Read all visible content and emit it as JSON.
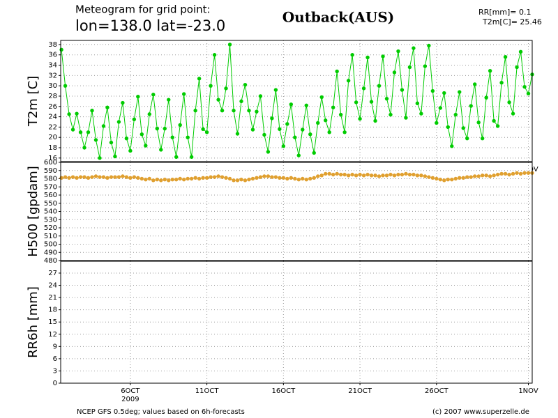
{
  "header": {
    "line1": "Meteogram for grid point:",
    "line2": "lon=138.0 lat=-23.0",
    "place": "Outback(AUS)",
    "rr": "RR[mm]= 0.1",
    "t2m": "T2m[C]= 25.46"
  },
  "footer": {
    "left": "NCEP GFS 0.5deg; values based on 6h-forecasts",
    "right": "(c) 2007 www.superzelle.de"
  },
  "chart_data": [
    {
      "type": "line",
      "ylabel": "T2m [C]",
      "xlim": [
        1.45,
        32.25
      ],
      "xticks": [
        {
          "value": 6,
          "label": "6OCT"
        },
        {
          "value": 11,
          "label": "11OCT"
        },
        {
          "value": 16,
          "label": "16OCT"
        },
        {
          "value": 21,
          "label": "21OCT"
        },
        {
          "value": 26,
          "label": "26OCT"
        },
        {
          "value": 32,
          "label": "1NOV"
        }
      ],
      "year_label": "2009",
      "ylim": [
        15.3,
        38.8
      ],
      "yticks": [
        16,
        18,
        20,
        22,
        24,
        26,
        28,
        30,
        32,
        34,
        36,
        38
      ],
      "grid": true,
      "x": [
        1.5,
        1.75,
        2,
        2.25,
        2.5,
        2.75,
        3,
        3.25,
        3.5,
        3.75,
        4,
        4.25,
        4.5,
        4.75,
        5,
        5.25,
        5.5,
        5.75,
        6,
        6.25,
        6.5,
        6.75,
        7,
        7.25,
        7.5,
        7.75,
        8,
        8.25,
        8.5,
        8.75,
        9,
        9.25,
        9.5,
        9.75,
        10,
        10.25,
        10.5,
        10.75,
        11,
        11.25,
        11.5,
        11.75,
        12,
        12.25,
        12.5,
        12.75,
        13,
        13.25,
        13.5,
        13.75,
        14,
        14.25,
        14.5,
        14.75,
        15,
        15.25,
        15.5,
        15.75,
        16,
        16.25,
        16.5,
        16.75,
        17,
        17.25,
        17.5,
        17.75,
        18,
        18.25,
        18.5,
        18.75,
        19,
        19.25,
        19.5,
        19.75,
        20,
        20.25,
        20.5,
        20.75,
        21,
        21.25,
        21.5,
        21.75,
        22,
        22.25,
        22.5,
        22.75,
        23,
        23.25,
        23.5,
        23.75,
        24,
        24.25,
        24.5,
        24.75,
        25,
        25.25,
        25.5,
        25.75,
        26,
        26.25,
        26.5,
        26.75,
        27,
        27.25,
        27.5,
        27.75,
        28,
        28.25,
        28.5,
        28.75,
        29,
        29.25,
        29.5,
        29.75,
        30,
        30.25,
        30.5,
        30.75,
        31,
        31.25,
        31.5,
        31.75,
        32,
        32.25
      ],
      "series": [
        {
          "color": "#00cc00",
          "values": [
            37,
            30,
            24.5,
            21.5,
            24.6,
            21,
            18,
            21,
            25.2,
            19.5,
            16,
            22.2,
            25.8,
            19,
            16.3,
            23,
            26.7,
            19.8,
            17.4,
            23.5,
            27.9,
            20.6,
            18.4,
            24.5,
            28.3,
            21.7,
            17.6,
            21.7,
            27.3,
            20,
            16.2,
            22.4,
            28.4,
            20,
            16.2,
            25.2,
            31.4,
            21.6,
            21,
            30,
            36,
            27.3,
            25.2,
            29.5,
            38,
            25.2,
            20.7,
            27,
            30.2,
            25.2,
            21.5,
            25,
            28,
            20.5,
            17.2,
            23.7,
            29.2,
            21.6,
            18.3,
            22.6,
            26.4,
            20,
            16.5,
            21.5,
            26.2,
            20.6,
            17,
            22.8,
            27.8,
            23.3,
            21,
            25.8,
            32.8,
            24.4,
            21,
            31,
            36,
            26.8,
            23.6,
            29.5,
            35.5,
            26.9,
            23.2,
            30,
            35.7,
            27.5,
            24.4,
            32.6,
            36.7,
            29.2,
            23.8,
            33.6,
            37.3,
            26.6,
            24.6,
            33.8,
            37.8,
            29,
            22.8,
            25.7,
            28.6,
            22,
            18.3,
            24.4,
            28.8,
            21.8,
            19.8,
            26.1,
            30.3,
            22.9,
            19.8,
            27.7,
            32.9,
            23.2,
            22.2,
            30.6,
            35.6,
            26.8,
            24.6,
            33.6,
            36.6,
            29.8,
            28.5,
            32.2
          ]
        }
      ]
    },
    {
      "type": "line",
      "ylabel": "H500 [gpdam]",
      "xlim": [
        1.45,
        32.25
      ],
      "ylim": [
        480,
        600
      ],
      "yticks": [
        480,
        490,
        500,
        510,
        520,
        530,
        540,
        550,
        560,
        570,
        580,
        590,
        600
      ],
      "grid": true,
      "x": [
        1.5,
        1.75,
        2,
        2.25,
        2.5,
        2.75,
        3,
        3.25,
        3.5,
        3.75,
        4,
        4.25,
        4.5,
        4.75,
        5,
        5.25,
        5.5,
        5.75,
        6,
        6.25,
        6.5,
        6.75,
        7,
        7.25,
        7.5,
        7.75,
        8,
        8.25,
        8.5,
        8.75,
        9,
        9.25,
        9.5,
        9.75,
        10,
        10.25,
        10.5,
        10.75,
        11,
        11.25,
        11.5,
        11.75,
        12,
        12.25,
        12.5,
        12.75,
        13,
        13.25,
        13.5,
        13.75,
        14,
        14.25,
        14.5,
        14.75,
        15,
        15.25,
        15.5,
        15.75,
        16,
        16.25,
        16.5,
        16.75,
        17,
        17.25,
        17.5,
        17.75,
        18,
        18.25,
        18.5,
        18.75,
        19,
        19.25,
        19.5,
        19.75,
        20,
        20.25,
        20.5,
        20.75,
        21,
        21.25,
        21.5,
        21.75,
        22,
        22.25,
        22.5,
        22.75,
        23,
        23.25,
        23.5,
        23.75,
        24,
        24.25,
        24.5,
        24.75,
        25,
        25.25,
        25.5,
        25.75,
        26,
        26.25,
        26.5,
        26.75,
        27,
        27.25,
        27.5,
        27.75,
        28,
        28.25,
        28.5,
        28.75,
        29,
        29.25,
        29.5,
        29.75,
        30,
        30.25,
        30.5,
        30.75,
        31,
        31.25,
        31.5,
        31.75,
        32,
        32.25
      ],
      "series": [
        {
          "color": "#e0a030",
          "values": [
            581,
            582,
            581,
            582,
            581,
            582,
            582,
            581,
            582,
            583,
            582,
            582,
            581,
            582,
            582,
            582,
            583,
            582,
            581,
            582,
            581,
            580,
            579,
            580,
            578,
            579,
            578,
            579,
            578,
            579,
            579,
            580,
            579,
            580,
            580,
            581,
            580,
            581,
            581,
            582,
            582,
            583,
            582,
            581,
            580,
            578,
            578,
            579,
            578,
            579,
            580,
            581,
            582,
            583,
            583,
            582,
            582,
            581,
            581,
            580,
            581,
            580,
            579,
            580,
            579,
            580,
            581,
            583,
            584,
            586,
            586,
            585,
            586,
            585,
            585,
            584,
            585,
            584,
            585,
            584,
            585,
            584,
            584,
            583,
            584,
            584,
            585,
            584,
            585,
            585,
            586,
            585,
            585,
            584,
            584,
            583,
            582,
            581,
            580,
            579,
            578,
            579,
            579,
            580,
            581,
            581,
            582,
            582,
            583,
            583,
            584,
            584,
            583,
            584,
            585,
            586,
            586,
            585,
            586,
            587,
            586,
            587,
            587,
            587
          ]
        }
      ]
    },
    {
      "type": "line",
      "ylabel": "RR6h [mm]",
      "xlim": [
        1.45,
        32.25
      ],
      "xticks": [
        {
          "value": 6,
          "label": "6OCT"
        },
        {
          "value": 11,
          "label": "11OCT"
        },
        {
          "value": 16,
          "label": "16OCT"
        },
        {
          "value": 21,
          "label": "21OCT"
        },
        {
          "value": 26,
          "label": "26OCT"
        },
        {
          "value": 32,
          "label": "1NOV"
        }
      ],
      "year_label": "2009",
      "ylim": [
        0,
        29.9
      ],
      "yticks": [
        0,
        3,
        6,
        9,
        12,
        15,
        18,
        21,
        24,
        27
      ],
      "grid": true
    }
  ]
}
